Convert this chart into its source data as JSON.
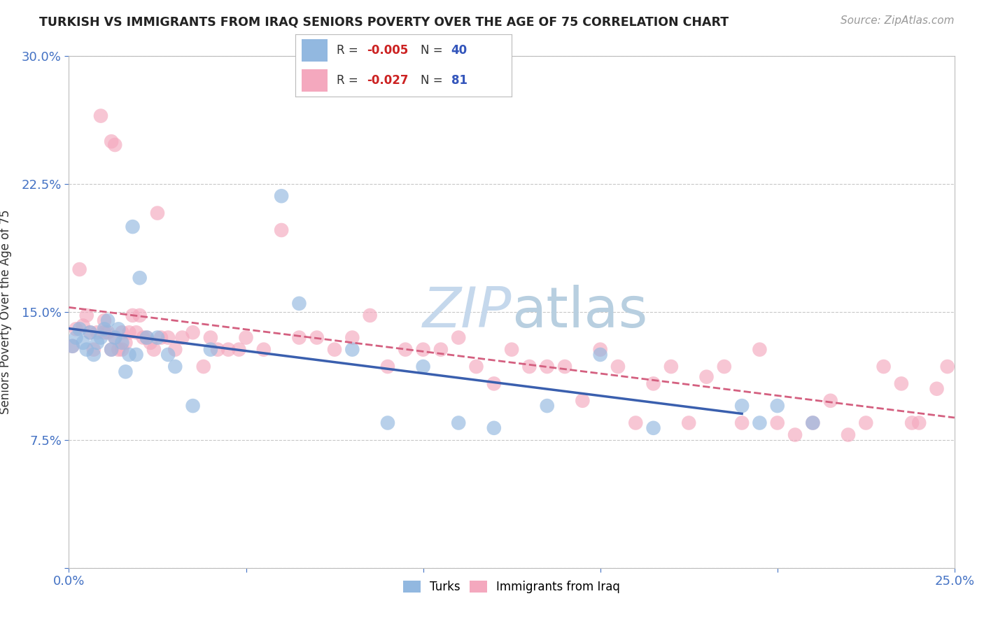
{
  "title": "TURKISH VS IMMIGRANTS FROM IRAQ SENIORS POVERTY OVER THE AGE OF 75 CORRELATION CHART",
  "source": "Source: ZipAtlas.com",
  "ylabel": "Seniors Poverty Over the Age of 75",
  "xlim": [
    0.0,
    0.25
  ],
  "ylim": [
    0.0,
    0.3
  ],
  "turks_R": "-0.005",
  "turks_N": "40",
  "iraq_R": "-0.027",
  "iraq_N": "81",
  "turks_color": "#92b8e0",
  "iraq_color": "#f4a8be",
  "turks_line_color": "#3a5fae",
  "iraq_line_color": "#d46080",
  "watermark_color": "#c5d8ec",
  "background_color": "#ffffff",
  "grid_color": "#c8c8c8",
  "turks_x": [
    0.001,
    0.002,
    0.003,
    0.004,
    0.005,
    0.006,
    0.007,
    0.008,
    0.009,
    0.01,
    0.011,
    0.012,
    0.013,
    0.014,
    0.015,
    0.016,
    0.017,
    0.018,
    0.019,
    0.02,
    0.022,
    0.025,
    0.028,
    0.03,
    0.035,
    0.04,
    0.06,
    0.065,
    0.08,
    0.09,
    0.1,
    0.11,
    0.12,
    0.135,
    0.15,
    0.165,
    0.19,
    0.195,
    0.2,
    0.21
  ],
  "turks_y": [
    0.13,
    0.135,
    0.14,
    0.132,
    0.128,
    0.138,
    0.125,
    0.132,
    0.135,
    0.14,
    0.145,
    0.128,
    0.135,
    0.14,
    0.132,
    0.115,
    0.125,
    0.2,
    0.125,
    0.17,
    0.135,
    0.135,
    0.125,
    0.118,
    0.095,
    0.128,
    0.218,
    0.155,
    0.128,
    0.085,
    0.118,
    0.085,
    0.082,
    0.095,
    0.125,
    0.082,
    0.095,
    0.085,
    0.095,
    0.085
  ],
  "iraq_x": [
    0.001,
    0.002,
    0.003,
    0.004,
    0.005,
    0.006,
    0.007,
    0.008,
    0.009,
    0.01,
    0.01,
    0.011,
    0.012,
    0.012,
    0.013,
    0.013,
    0.014,
    0.015,
    0.015,
    0.016,
    0.017,
    0.018,
    0.019,
    0.02,
    0.021,
    0.022,
    0.023,
    0.024,
    0.025,
    0.026,
    0.028,
    0.03,
    0.032,
    0.035,
    0.038,
    0.04,
    0.042,
    0.045,
    0.048,
    0.05,
    0.055,
    0.06,
    0.065,
    0.07,
    0.075,
    0.08,
    0.085,
    0.09,
    0.095,
    0.1,
    0.105,
    0.11,
    0.115,
    0.12,
    0.125,
    0.13,
    0.135,
    0.14,
    0.145,
    0.15,
    0.155,
    0.16,
    0.165,
    0.17,
    0.175,
    0.18,
    0.185,
    0.19,
    0.195,
    0.2,
    0.205,
    0.21,
    0.215,
    0.22,
    0.225,
    0.23,
    0.235,
    0.238,
    0.24,
    0.245,
    0.248
  ],
  "iraq_y": [
    0.13,
    0.14,
    0.175,
    0.142,
    0.148,
    0.138,
    0.128,
    0.138,
    0.265,
    0.145,
    0.138,
    0.138,
    0.25,
    0.128,
    0.248,
    0.135,
    0.128,
    0.138,
    0.128,
    0.132,
    0.138,
    0.148,
    0.138,
    0.148,
    0.135,
    0.135,
    0.132,
    0.128,
    0.208,
    0.135,
    0.135,
    0.128,
    0.135,
    0.138,
    0.118,
    0.135,
    0.128,
    0.128,
    0.128,
    0.135,
    0.128,
    0.198,
    0.135,
    0.135,
    0.128,
    0.135,
    0.148,
    0.118,
    0.128,
    0.128,
    0.128,
    0.135,
    0.118,
    0.108,
    0.128,
    0.118,
    0.118,
    0.118,
    0.098,
    0.128,
    0.118,
    0.085,
    0.108,
    0.118,
    0.085,
    0.112,
    0.118,
    0.085,
    0.128,
    0.085,
    0.078,
    0.085,
    0.098,
    0.078,
    0.085,
    0.118,
    0.108,
    0.085,
    0.085,
    0.105,
    0.118
  ]
}
